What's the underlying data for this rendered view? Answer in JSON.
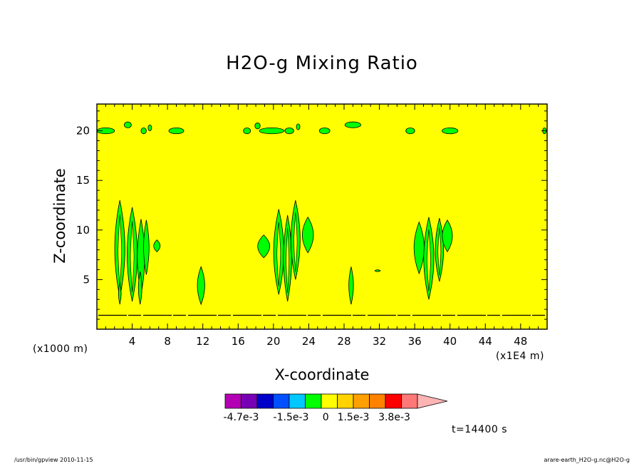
{
  "chart_data": {
    "type": "heatmap",
    "title": "H2O-g Mixing Ratio",
    "xlabel": "X-coordinate",
    "ylabel": "Z-coordinate",
    "x_unit": "(x1E4 m)",
    "y_unit": "(x1000 m)",
    "xlim": [
      0,
      51
    ],
    "ylim": [
      0,
      22.7
    ],
    "x_ticks": [
      4,
      8,
      12,
      16,
      20,
      24,
      28,
      32,
      36,
      40,
      44,
      48
    ],
    "x_tick_labels": [
      "4",
      "8",
      "12",
      "16",
      "20",
      "24",
      "28",
      "32",
      "36",
      "40",
      "44",
      "48"
    ],
    "y_ticks": [
      5,
      10,
      15,
      20
    ],
    "y_tick_labels": [
      "5",
      "10",
      "15",
      "20"
    ],
    "background_value_color": "#ffff00",
    "anomaly_color": "#00ff00",
    "inner_core_color": "#ffff00",
    "colorbar": {
      "colors": [
        "#b400b4",
        "#7800b4",
        "#0000c8",
        "#0050ff",
        "#00c8ff",
        "#00ff00",
        "#ffff00",
        "#ffd200",
        "#ffa000",
        "#ff8200",
        "#ff0000",
        "#ff7878",
        "#ffb4b4"
      ],
      "tick_labels": [
        "-4.7e-3",
        "-1.5e-3",
        "0",
        "1.5e-3",
        "3.8e-3"
      ]
    },
    "boundary_layer_z": 1.4,
    "features": [
      {
        "name": "tower-left-1",
        "x": 2.6,
        "z0": 3.2,
        "z1": 13.0,
        "w": 0.55
      },
      {
        "name": "tower-left-2",
        "x": 4.0,
        "z0": 2.8,
        "z1": 12.3,
        "w": 0.55
      },
      {
        "name": "tower-left-3",
        "x": 5.0,
        "z0": 3.5,
        "z1": 11.1,
        "w": 0.4
      },
      {
        "name": "tower-left-4",
        "x": 5.6,
        "z0": 5.5,
        "z1": 11.0,
        "w": 0.3
      },
      {
        "name": "blob-left",
        "x": 6.8,
        "z0": 7.8,
        "z1": 9.0,
        "w": 0.35
      },
      {
        "name": "tower-left-5",
        "x": 2.6,
        "z0": 2.5,
        "z1": 4.7,
        "w": 0.15
      },
      {
        "name": "tower-left-6",
        "x": 4.9,
        "z0": 2.5,
        "z1": 5.8,
        "w": 0.2
      },
      {
        "name": "stub-12",
        "x": 11.8,
        "z0": 2.5,
        "z1": 6.3,
        "w": 0.4
      },
      {
        "name": "blob-mid-left",
        "x": 18.9,
        "z0": 7.2,
        "z1": 9.5,
        "w": 0.65
      },
      {
        "name": "tower-mid-1",
        "x": 20.6,
        "z0": 3.5,
        "z1": 12.1,
        "w": 0.55
      },
      {
        "name": "tower-mid-2",
        "x": 21.6,
        "z0": 2.8,
        "z1": 11.5,
        "w": 0.45
      },
      {
        "name": "tower-mid-3",
        "x": 22.5,
        "z0": 5.0,
        "z1": 13.0,
        "w": 0.5
      },
      {
        "name": "blob-mid-right",
        "x": 23.9,
        "z0": 7.7,
        "z1": 11.3,
        "w": 0.6
      },
      {
        "name": "stub-29",
        "x": 28.8,
        "z0": 2.5,
        "z1": 6.3,
        "w": 0.25
      },
      {
        "name": "tower-right-1",
        "x": 36.5,
        "z0": 5.6,
        "z1": 10.8,
        "w": 0.55
      },
      {
        "name": "tower-right-2",
        "x": 37.6,
        "z0": 3.0,
        "z1": 11.3,
        "w": 0.55
      },
      {
        "name": "tower-right-3",
        "x": 38.8,
        "z0": 4.8,
        "z1": 11.2,
        "w": 0.45
      },
      {
        "name": "blob-right",
        "x": 39.7,
        "z0": 7.8,
        "z1": 11.0,
        "w": 0.55
      },
      {
        "name": "dot-32",
        "x": 31.8,
        "z0": 5.8,
        "z1": 6.0,
        "w": 0.3
      }
    ],
    "upper_patches": [
      {
        "x": 1.0,
        "z": 20.0,
        "w": 1.0
      },
      {
        "x": 3.5,
        "z": 20.6,
        "w": 0.4
      },
      {
        "x": 5.3,
        "z": 20.0,
        "w": 0.3
      },
      {
        "x": 6.0,
        "z": 20.3,
        "w": 0.2
      },
      {
        "x": 9.0,
        "z": 20.0,
        "w": 0.85
      },
      {
        "x": 17.0,
        "z": 20.0,
        "w": 0.4
      },
      {
        "x": 18.2,
        "z": 20.5,
        "w": 0.3
      },
      {
        "x": 19.8,
        "z": 20.0,
        "w": 1.4
      },
      {
        "x": 21.8,
        "z": 20.0,
        "w": 0.5
      },
      {
        "x": 22.8,
        "z": 20.4,
        "w": 0.2
      },
      {
        "x": 25.8,
        "z": 20.0,
        "w": 0.6
      },
      {
        "x": 29.0,
        "z": 20.6,
        "w": 0.9
      },
      {
        "x": 35.5,
        "z": 20.0,
        "w": 0.5
      },
      {
        "x": 40.0,
        "z": 20.0,
        "w": 0.9
      },
      {
        "x": 50.7,
        "z": 20.0,
        "w": 0.2
      }
    ],
    "time_label": "t=14400  s"
  },
  "footer": {
    "left": "/usr/bin/gpview  2010-11-15",
    "right": "arare-earth_H2O-g.nc@H2O-g"
  }
}
